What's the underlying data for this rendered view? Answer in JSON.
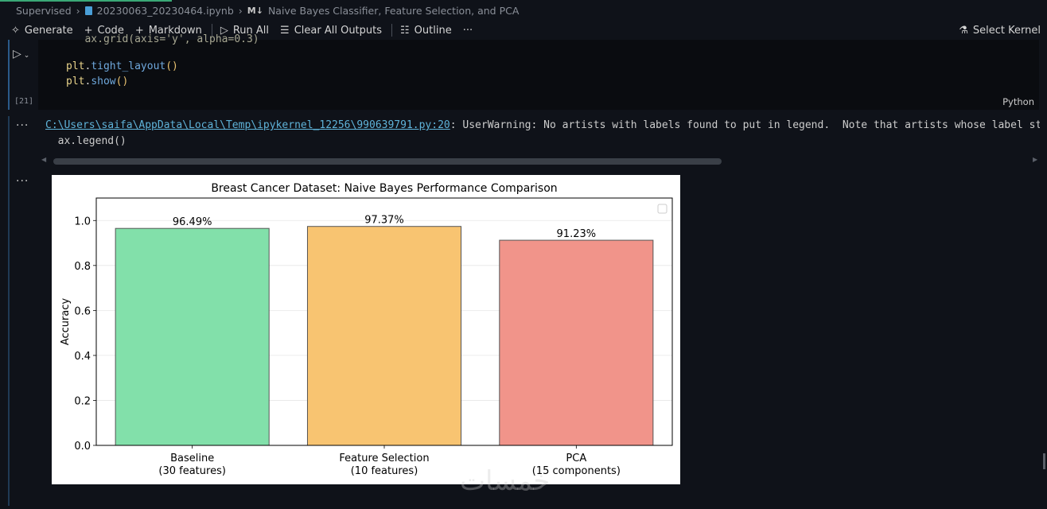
{
  "breadcrumb": {
    "items": [
      "Supervised",
      "20230063_20230464.ipynb",
      "Naive Bayes Classifier, Feature Selection, and PCA"
    ],
    "md_icon": "M↓"
  },
  "toolbar": {
    "generate": "Generate",
    "code": "Code",
    "markdown": "Markdown",
    "run_all": "Run All",
    "clear_all_outputs": "Clear All Outputs",
    "outline": "Outline",
    "more": "···",
    "select_kernel": "Select Kernel"
  },
  "cell": {
    "code_lines": [
      {
        "partial": "   ax.grid(axis='y', alpha=0.3)"
      },
      {
        "var": "plt",
        "dot": ".",
        "fn": "tight_layout",
        "paren": "()"
      },
      {
        "var": "plt",
        "dot": ".",
        "fn": "show",
        "paren": "()"
      }
    ],
    "execution_count": "[21]",
    "language": "Python"
  },
  "output": {
    "warning_path": "C:\\Users\\saifa\\AppData\\Local\\Temp\\ipykernel_12256\\990639791.py:20",
    "warning_text": ": UserWarning: No artists with labels found to put in legend.  Note that artists whose label start with an underscore are ignored when legend() is called with no argument.",
    "line2": "  ax.legend()",
    "dots": "···"
  },
  "watermark": "خمسات",
  "chart_data": {
    "type": "bar",
    "title": "Breast Cancer Dataset: Naive Bayes Performance Comparison",
    "xlabel": "",
    "ylabel": "Accuracy",
    "categories": [
      "Baseline\n(30 features)",
      "Feature Selection\n(10 features)",
      "PCA\n(15 components)"
    ],
    "values": [
      0.9649,
      0.9737,
      0.9123
    ],
    "data_labels": [
      "96.49%",
      "97.37%",
      "91.23%"
    ],
    "colors": [
      "#82e0aa",
      "#f8c471",
      "#f1948a"
    ],
    "ylim": [
      0,
      1.1
    ],
    "yticks": [
      0.0,
      0.2,
      0.4,
      0.6,
      0.8,
      1.0
    ],
    "ytick_labels": [
      "0.0",
      "0.2",
      "0.4",
      "0.6",
      "0.8",
      "1.0"
    ],
    "grid": "y",
    "legend": "top-right (empty)"
  }
}
